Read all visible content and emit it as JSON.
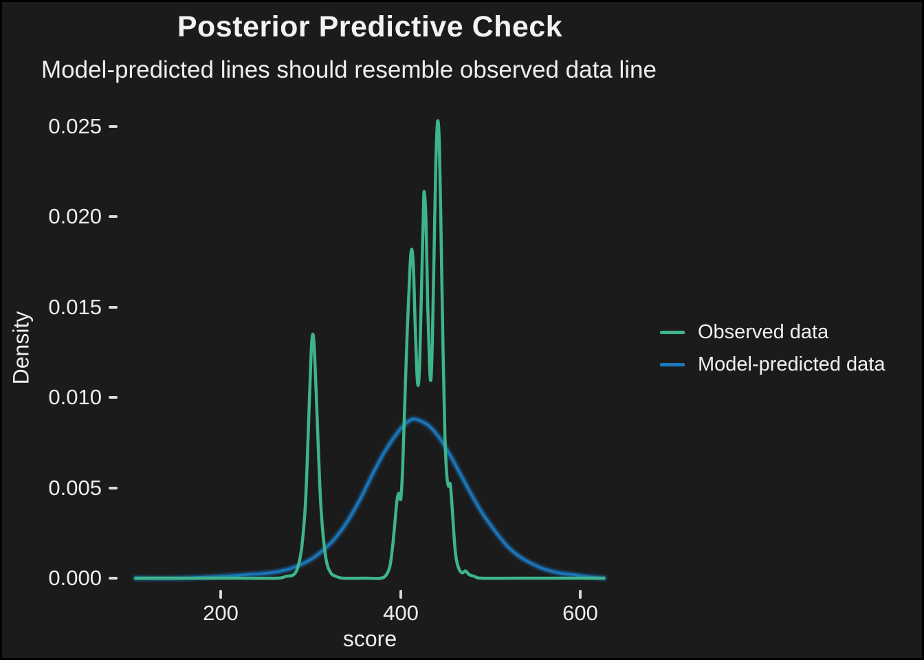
{
  "window": {
    "background": "#1b1b1c",
    "border_color": "#000000"
  },
  "header": {
    "title": "Posterior Predictive Check",
    "subtitle": "Model-predicted lines should resemble observed data line"
  },
  "axes": {
    "x": {
      "label": "score",
      "ticks": [
        "200",
        "400",
        "600"
      ],
      "tick_values": [
        200,
        400,
        600
      ]
    },
    "y": {
      "label": "Density",
      "ticks": [
        "0.025",
        "0.020",
        "0.015",
        "0.010",
        "0.005",
        "0.000"
      ],
      "tick_values": [
        0.025,
        0.02,
        0.015,
        0.01,
        0.005,
        0.0
      ]
    }
  },
  "legend": {
    "items": [
      {
        "label": "Observed data",
        "color": "#3eb489"
      },
      {
        "label": "Model-predicted data",
        "color": "#1b79bd"
      }
    ]
  },
  "chart_data": {
    "type": "line",
    "title": "Posterior Predictive Check",
    "subtitle": "Model-predicted lines should resemble observed data line",
    "xlabel": "score",
    "ylabel": "Density",
    "xlim": [
      105,
      626
    ],
    "ylim": [
      0,
      0.0265
    ],
    "grid": false,
    "legend_position": "right",
    "background": "dark",
    "series": [
      {
        "name": "Observed data",
        "color": "#3eb489",
        "style": "solid",
        "points": [
          [
            105,
            0
          ],
          [
            160,
            0
          ],
          [
            220,
            0
          ],
          [
            262,
            0
          ],
          [
            272,
            0.0001
          ],
          [
            281,
            0.0002
          ],
          [
            286,
            0.0007
          ],
          [
            290,
            0.0018
          ],
          [
            294,
            0.0042
          ],
          [
            297,
            0.008
          ],
          [
            300,
            0.0122
          ],
          [
            302,
            0.0135
          ],
          [
            304,
            0.0125
          ],
          [
            307,
            0.0088
          ],
          [
            310,
            0.005
          ],
          [
            313,
            0.0027
          ],
          [
            317,
            0.001
          ],
          [
            322,
            0.0003
          ],
          [
            328,
            0.0001
          ],
          [
            336,
            0
          ],
          [
            360,
            0
          ],
          [
            378,
            0
          ],
          [
            384,
            0.0002
          ],
          [
            388,
            0.0007
          ],
          [
            391,
            0.0018
          ],
          [
            394,
            0.0034
          ],
          [
            396,
            0.0044
          ],
          [
            398,
            0.0047
          ],
          [
            400,
            0.0044
          ],
          [
            402,
            0.006
          ],
          [
            404,
            0.009
          ],
          [
            407,
            0.0135
          ],
          [
            410,
            0.017
          ],
          [
            412,
            0.0182
          ],
          [
            414,
            0.0172
          ],
          [
            416,
            0.014
          ],
          [
            418,
            0.0113
          ],
          [
            419.5,
            0.0107
          ],
          [
            421,
            0.012
          ],
          [
            423,
            0.016
          ],
          [
            425,
            0.02
          ],
          [
            426,
            0.0214
          ],
          [
            428,
            0.0198
          ],
          [
            430,
            0.015
          ],
          [
            432,
            0.0118
          ],
          [
            433.5,
            0.011
          ],
          [
            435,
            0.013
          ],
          [
            437,
            0.018
          ],
          [
            439,
            0.023
          ],
          [
            441,
            0.0253
          ],
          [
            443,
            0.0238
          ],
          [
            445,
            0.0185
          ],
          [
            447,
            0.0125
          ],
          [
            449,
            0.008
          ],
          [
            451,
            0.0058
          ],
          [
            453,
            0.0051
          ],
          [
            455,
            0.0052
          ],
          [
            457,
            0.004
          ],
          [
            459,
            0.0025
          ],
          [
            461,
            0.0013
          ],
          [
            464,
            0.0006
          ],
          [
            468,
            0.0003
          ],
          [
            472,
            0.0004
          ],
          [
            476,
            0.0002
          ],
          [
            482,
            0.0001
          ],
          [
            490,
            0
          ],
          [
            530,
            0
          ],
          [
            580,
            0
          ],
          [
            626,
            0
          ]
        ]
      },
      {
        "name": "Model-predicted data",
        "color": "#1b79bd",
        "style": "solid-band",
        "points": [
          [
            105,
            0
          ],
          [
            150,
            0
          ],
          [
            200,
            0.0001
          ],
          [
            230,
            0.0002
          ],
          [
            255,
            0.0003
          ],
          [
            275,
            0.0005
          ],
          [
            295,
            0.0009
          ],
          [
            310,
            0.0014
          ],
          [
            325,
            0.0021
          ],
          [
            340,
            0.0031
          ],
          [
            355,
            0.0044
          ],
          [
            370,
            0.0059
          ],
          [
            382,
            0.007
          ],
          [
            394,
            0.0079
          ],
          [
            404,
            0.0085
          ],
          [
            413,
            0.0088
          ],
          [
            422,
            0.0087
          ],
          [
            432,
            0.0084
          ],
          [
            444,
            0.0077
          ],
          [
            456,
            0.0067
          ],
          [
            468,
            0.0056
          ],
          [
            480,
            0.0045
          ],
          [
            492,
            0.0035
          ],
          [
            505,
            0.0026
          ],
          [
            518,
            0.0018
          ],
          [
            532,
            0.0012
          ],
          [
            546,
            0.0008
          ],
          [
            560,
            0.0005
          ],
          [
            575,
            0.0003
          ],
          [
            590,
            0.0002
          ],
          [
            605,
            0.0001
          ],
          [
            626,
            0
          ]
        ]
      }
    ]
  }
}
